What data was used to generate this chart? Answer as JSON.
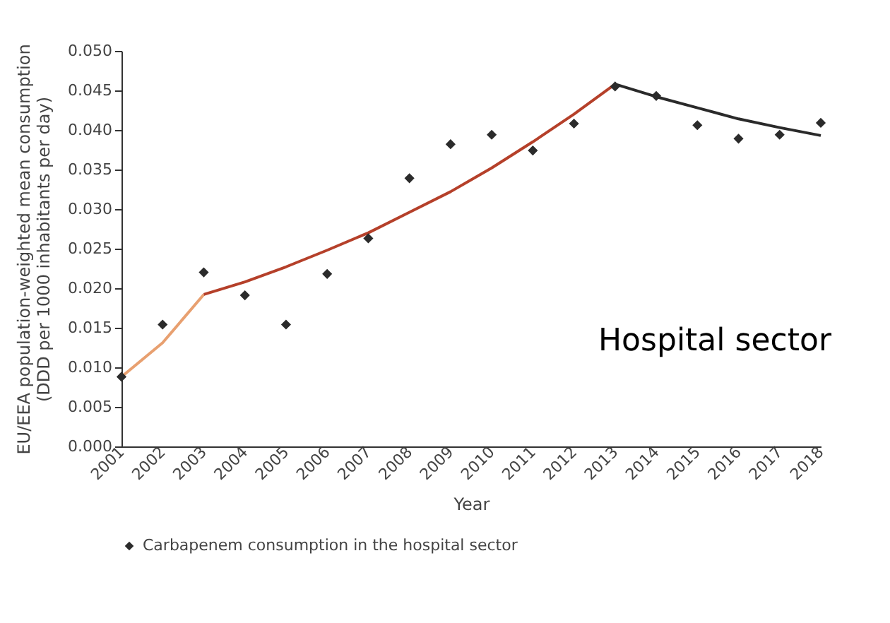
{
  "chart_data": {
    "type": "scatter",
    "annotations": [
      "Hospital sector"
    ],
    "xlabel": "Year",
    "ylabel": "EU/EEA population-weighted mean consumption\n(DDD per 1000 inhabitants per day)",
    "categories": [
      "2001",
      "2002",
      "2003",
      "2004",
      "2005",
      "2006",
      "2007",
      "2008",
      "2009",
      "2010",
      "2011",
      "2012",
      "2013",
      "2014",
      "2015",
      "2016",
      "2017",
      "2018"
    ],
    "ylim": [
      0,
      0.05
    ],
    "yticks": [
      {
        "value": 0,
        "label": "0.000"
      },
      {
        "value": 0.005,
        "label": "0.005"
      },
      {
        "value": 0.01,
        "label": "0.010"
      },
      {
        "value": 0.015,
        "label": "0.015"
      },
      {
        "value": 0.02,
        "label": "0.020"
      },
      {
        "value": 0.025,
        "label": "0.025"
      },
      {
        "value": 0.03,
        "label": "0.030"
      },
      {
        "value": 0.035,
        "label": "0.035"
      },
      {
        "value": 0.04,
        "label": "0.040"
      },
      {
        "value": 0.045,
        "label": "0.045"
      },
      {
        "value": 0.05,
        "label": "0.050"
      }
    ],
    "grid": false,
    "legend": "bottom",
    "series": [
      {
        "type": "line",
        "marker": "none",
        "line_style": "solid",
        "color": "#e8a070",
        "values": [
          0.0088,
          0.0131,
          0.0192,
          null,
          null,
          null,
          null,
          null,
          null,
          null,
          null,
          null,
          null,
          null,
          null,
          null,
          null,
          null
        ]
      },
      {
        "type": "line",
        "marker": "none",
        "line_style": "solid",
        "color": "#b5402a",
        "values": [
          null,
          null,
          0.0192,
          0.0208,
          0.0227,
          0.0248,
          0.027,
          0.0296,
          0.0322,
          0.0352,
          0.0385,
          0.042,
          0.0458,
          null,
          null,
          null,
          null,
          null
        ]
      },
      {
        "type": "line",
        "marker": "none",
        "line_style": "solid",
        "color": "#2a2a2a",
        "values": [
          null,
          null,
          null,
          null,
          null,
          null,
          null,
          null,
          null,
          null,
          null,
          null,
          0.0458,
          0.0442,
          0.0428,
          0.0414,
          0.0403,
          0.0393
        ]
      },
      {
        "marker": "diamond",
        "name": "Carbapenem consumption in the hospital sector",
        "color": "#2b2b2b",
        "values": [
          0.0088,
          0.0154,
          0.022,
          0.0191,
          0.0154,
          0.0218,
          0.0263,
          0.0339,
          0.0382,
          0.0394,
          0.0374,
          0.0408,
          0.0455,
          0.0443,
          0.0406,
          0.0389,
          0.0394,
          0.0409
        ]
      }
    ]
  }
}
